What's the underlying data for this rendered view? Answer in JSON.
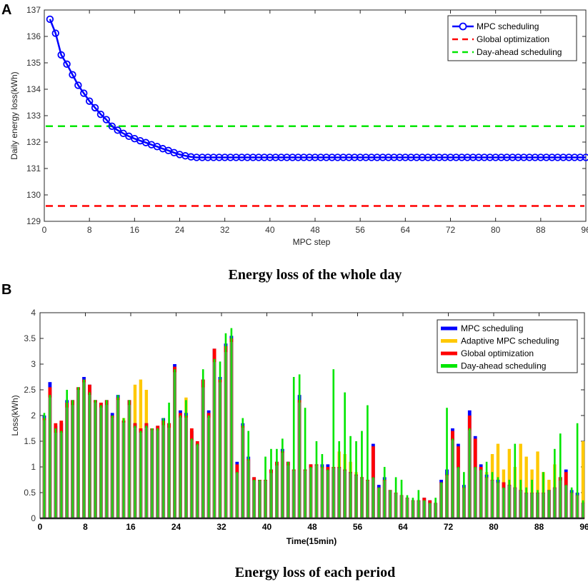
{
  "panels": {
    "a_letter": "A",
    "b_letter": "B",
    "a_caption": "Energy loss of the whole day",
    "b_caption": "Energy loss of each period"
  },
  "colors": {
    "mpc": "#0000ff",
    "global": "#ff0000",
    "dayahead": "#00e600",
    "adaptive": "#ffc800",
    "axis": "#262626"
  },
  "chart_data": [
    {
      "type": "line",
      "title": "Energy loss of the whole day",
      "xlabel": "MPC step",
      "ylabel": "Daily energy loss(kWh)",
      "xlim": [
        0,
        96
      ],
      "ylim": [
        129,
        137
      ],
      "xticks": [
        0,
        8,
        16,
        24,
        32,
        40,
        48,
        56,
        64,
        72,
        80,
        88,
        96
      ],
      "yticks": [
        129,
        130,
        131,
        132,
        133,
        134,
        135,
        136,
        137
      ],
      "legend_position": "top-right",
      "series": [
        {
          "name": "MPC scheduling",
          "style": "line-circle",
          "x": [
            1,
            2,
            3,
            4,
            5,
            6,
            7,
            8,
            9,
            10,
            11,
            12,
            13,
            14,
            15,
            16,
            17,
            18,
            19,
            20,
            21,
            22,
            23,
            24,
            25,
            26,
            27,
            28,
            29,
            30,
            31,
            32,
            33,
            34,
            35,
            36,
            37,
            38,
            39,
            40,
            41,
            42,
            43,
            44,
            45,
            46,
            47,
            48,
            49,
            50,
            51,
            52,
            53,
            54,
            55,
            56,
            57,
            58,
            59,
            60,
            61,
            62,
            63,
            64,
            65,
            66,
            67,
            68,
            69,
            70,
            71,
            72,
            73,
            74,
            75,
            76,
            77,
            78,
            79,
            80,
            81,
            82,
            83,
            84,
            85,
            86,
            87,
            88,
            89,
            90,
            91,
            92,
            93,
            94,
            95,
            96
          ],
          "values": [
            136.65,
            136.12,
            135.3,
            134.95,
            134.55,
            134.15,
            133.85,
            133.55,
            133.3,
            133.05,
            132.85,
            132.6,
            132.45,
            132.33,
            132.22,
            132.13,
            132.05,
            131.98,
            131.9,
            131.83,
            131.75,
            131.68,
            131.6,
            131.53,
            131.48,
            131.44,
            131.42,
            131.42,
            131.42,
            131.42,
            131.42,
            131.42,
            131.42,
            131.42,
            131.42,
            131.42,
            131.42,
            131.42,
            131.42,
            131.42,
            131.42,
            131.42,
            131.42,
            131.42,
            131.42,
            131.42,
            131.42,
            131.42,
            131.42,
            131.42,
            131.42,
            131.42,
            131.42,
            131.42,
            131.42,
            131.42,
            131.42,
            131.42,
            131.42,
            131.42,
            131.42,
            131.42,
            131.42,
            131.42,
            131.42,
            131.42,
            131.42,
            131.42,
            131.42,
            131.42,
            131.42,
            131.42,
            131.42,
            131.42,
            131.42,
            131.42,
            131.42,
            131.42,
            131.42,
            131.42,
            131.42,
            131.42,
            131.42,
            131.42,
            131.42,
            131.42,
            131.42,
            131.42,
            131.42,
            131.42,
            131.42,
            131.42,
            131.42,
            131.42,
            131.42,
            131.42
          ]
        },
        {
          "name": "Global optimization",
          "style": "dashed",
          "value": 129.58
        },
        {
          "name": "Day-ahead scheduling",
          "style": "dashed",
          "value": 132.6
        }
      ]
    },
    {
      "type": "bar",
      "title": "Energy loss of each period",
      "xlabel": "Time(15min)",
      "ylabel": "Loss(kWh)",
      "xlim": [
        0,
        96
      ],
      "ylim": [
        0,
        4
      ],
      "xticks": [
        0,
        8,
        16,
        24,
        32,
        40,
        48,
        56,
        64,
        72,
        80,
        88,
        96
      ],
      "yticks": [
        0,
        0.5,
        1,
        1.5,
        2,
        2.5,
        3,
        3.5,
        4
      ],
      "legend_position": "top-right",
      "categories": [
        1,
        2,
        3,
        4,
        5,
        6,
        7,
        8,
        9,
        10,
        11,
        12,
        13,
        14,
        15,
        16,
        17,
        18,
        19,
        20,
        21,
        22,
        23,
        24,
        25,
        26,
        27,
        28,
        29,
        30,
        31,
        32,
        33,
        34,
        35,
        36,
        37,
        38,
        39,
        40,
        41,
        42,
        43,
        44,
        45,
        46,
        47,
        48,
        49,
        50,
        51,
        52,
        53,
        54,
        55,
        56,
        57,
        58,
        59,
        60,
        61,
        62,
        63,
        64,
        65,
        66,
        67,
        68,
        69,
        70,
        71,
        72,
        73,
        74,
        75,
        76,
        77,
        78,
        79,
        80,
        81,
        82,
        83,
        84,
        85,
        86,
        87,
        88,
        89,
        90,
        91,
        92,
        93,
        94,
        95,
        96
      ],
      "series": [
        {
          "name": "MPC scheduling",
          "values": [
            2.0,
            2.65,
            1.8,
            1.85,
            2.3,
            2.3,
            2.55,
            2.75,
            2.6,
            2.3,
            2.25,
            2.3,
            2.05,
            2.4,
            1.9,
            2.3,
            1.85,
            1.75,
            1.85,
            1.75,
            1.8,
            1.95,
            1.85,
            3.0,
            2.1,
            2.05,
            1.7,
            1.45,
            2.7,
            2.1,
            3.3,
            2.75,
            3.4,
            3.55,
            1.1,
            1.85,
            1.2,
            0.8,
            0.75,
            0.75,
            0.95,
            1.1,
            1.35,
            1.1,
            0.95,
            2.4,
            0.95,
            1.05,
            1.05,
            1.05,
            1.05,
            1.0,
            1.0,
            0.95,
            0.9,
            0.85,
            0.8,
            0.75,
            1.45,
            0.65,
            0.8,
            0.55,
            0.5,
            0.45,
            0.4,
            0.35,
            0.35,
            0.4,
            0.35,
            0.3,
            0.75,
            0.95,
            1.75,
            1.45,
            0.65,
            2.1,
            1.6,
            1.05,
            0.85,
            0.75,
            0.75,
            0.7,
            0.65,
            0.6,
            0.55,
            0.5,
            0.5,
            0.5,
            0.5,
            0.55,
            0.6,
            0.8,
            0.95,
            0.55,
            0.5,
            0.3
          ]
        },
        {
          "name": "Adaptive MPC scheduling",
          "values": [
            2.0,
            2.5,
            1.7,
            1.75,
            2.2,
            2.25,
            2.55,
            2.7,
            2.5,
            2.3,
            2.2,
            2.25,
            2.0,
            2.35,
            1.95,
            2.25,
            2.6,
            2.7,
            2.5,
            1.75,
            1.8,
            1.85,
            1.8,
            2.9,
            2.0,
            2.35,
            1.6,
            1.45,
            2.6,
            2.0,
            3.15,
            2.75,
            3.3,
            3.5,
            1.0,
            1.8,
            1.15,
            0.8,
            0.75,
            0.75,
            0.9,
            1.05,
            1.3,
            1.05,
            0.95,
            2.35,
            0.95,
            1.05,
            1.05,
            1.05,
            1.05,
            1.0,
            1.3,
            1.25,
            1.1,
            0.9,
            0.8,
            0.75,
            1.4,
            0.65,
            0.8,
            0.55,
            0.5,
            0.45,
            0.4,
            0.35,
            0.35,
            0.4,
            0.35,
            0.3,
            0.7,
            0.9,
            1.65,
            1.4,
            0.6,
            2.0,
            1.55,
            1.05,
            0.9,
            1.25,
            1.45,
            0.95,
            1.35,
            1.0,
            1.45,
            1.2,
            0.95,
            1.3,
            0.9,
            0.75,
            1.05,
            0.75,
            0.8,
            0.5,
            0.45,
            1.5
          ]
        },
        {
          "name": "Global optimization",
          "values": [
            1.95,
            2.55,
            1.85,
            1.9,
            2.25,
            2.3,
            2.55,
            2.7,
            2.6,
            2.3,
            2.25,
            2.3,
            2.0,
            2.35,
            1.9,
            2.3,
            1.85,
            1.75,
            1.85,
            1.75,
            1.8,
            1.9,
            1.85,
            2.95,
            2.05,
            2.0,
            1.75,
            1.5,
            2.7,
            2.05,
            3.3,
            2.7,
            3.35,
            3.5,
            1.05,
            1.8,
            1.15,
            0.8,
            0.75,
            0.75,
            0.95,
            1.1,
            1.3,
            1.1,
            0.95,
            2.3,
            0.95,
            1.05,
            1.05,
            1.0,
            1.0,
            1.0,
            1.0,
            0.95,
            0.9,
            0.85,
            0.8,
            0.75,
            1.4,
            0.6,
            0.75,
            0.55,
            0.5,
            0.45,
            0.4,
            0.35,
            0.35,
            0.4,
            0.35,
            0.3,
            0.7,
            0.85,
            1.7,
            1.4,
            0.6,
            2.0,
            1.55,
            1.0,
            0.8,
            0.75,
            0.7,
            0.7,
            0.65,
            0.6,
            0.55,
            0.5,
            0.5,
            0.5,
            0.5,
            0.55,
            0.6,
            0.8,
            0.9,
            0.5,
            0.45,
            0.3
          ]
        },
        {
          "name": "Day-ahead scheduling",
          "values": [
            2.05,
            2.4,
            1.75,
            1.7,
            2.5,
            2.3,
            2.55,
            2.7,
            2.45,
            2.3,
            2.2,
            2.3,
            2.0,
            2.4,
            1.95,
            2.3,
            1.8,
            1.7,
            1.8,
            1.75,
            1.75,
            1.95,
            2.25,
            2.9,
            2.0,
            2.3,
            1.55,
            1.45,
            2.9,
            2.0,
            3.1,
            3.05,
            3.6,
            3.7,
            0.9,
            1.95,
            1.7,
            0.75,
            0.75,
            1.2,
            1.35,
            1.35,
            1.55,
            1.1,
            2.75,
            2.8,
            2.15,
            1.0,
            1.5,
            1.25,
            0.95,
            2.9,
            1.5,
            2.45,
            1.6,
            1.5,
            1.7,
            2.2,
            0.8,
            0.6,
            1.0,
            0.55,
            0.8,
            0.75,
            0.45,
            0.4,
            0.55,
            0.35,
            0.3,
            0.4,
            0.7,
            2.15,
            1.55,
            1.0,
            0.9,
            1.75,
            1.0,
            0.95,
            1.1,
            0.9,
            0.8,
            0.6,
            0.75,
            1.45,
            0.75,
            0.6,
            0.75,
            0.55,
            0.9,
            0.55,
            1.35,
            1.65,
            0.65,
            0.6,
            1.85,
            0.35
          ]
        }
      ]
    }
  ]
}
